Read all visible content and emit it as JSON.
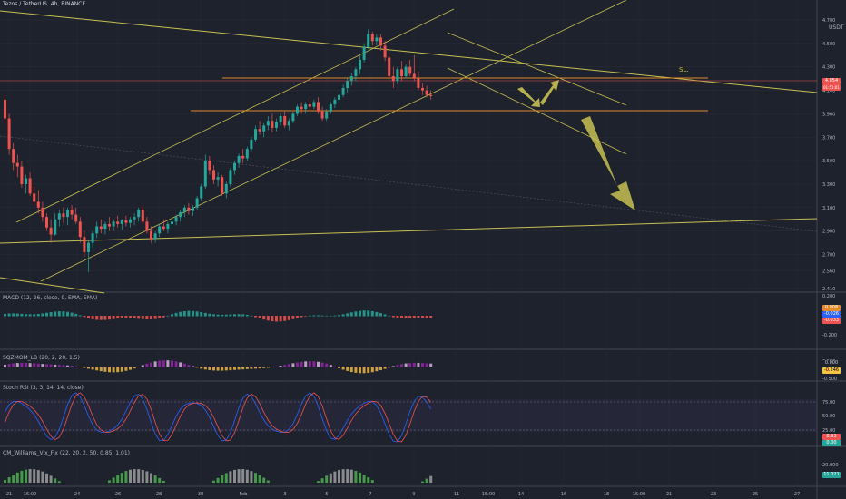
{
  "header": {
    "title": "Tezos / TetherUS, 4h, BINANCE",
    "currency": "USDT"
  },
  "colors": {
    "bg": "#1e222d",
    "up": "#26a69a",
    "down": "#ef5350",
    "trend": "#c8c052",
    "level": "#e08a2c",
    "grid": "#2a2e39",
    "text": "#b2b5be"
  },
  "chart_data": [
    {
      "type": "candlestick",
      "name": "price",
      "yticks": [
        "4.700",
        "4.500",
        "4.300",
        "4.100",
        "3.900",
        "3.700",
        "3.500",
        "3.300",
        "3.100",
        "2.900",
        "2.700",
        "2.560",
        "2.410"
      ],
      "ylim": [
        2.41,
        4.8
      ],
      "last_price": "4.054",
      "countdown": "01:51:01",
      "x_ticks": [
        "21",
        "15:00",
        "24",
        "26",
        "28",
        "30",
        "Feb",
        "3",
        "5",
        "7",
        "9",
        "11",
        "15:00",
        "14",
        "16",
        "18",
        "15:00",
        "21",
        "23",
        "25",
        "27"
      ],
      "annotations": [
        "SL."
      ],
      "candles": [
        [
          4.02,
          4.06,
          3.82,
          3.86
        ],
        [
          3.86,
          3.9,
          3.55,
          3.6
        ],
        [
          3.6,
          3.65,
          3.42,
          3.48
        ],
        [
          3.48,
          3.55,
          3.36,
          3.45
        ],
        [
          3.45,
          3.5,
          3.27,
          3.3
        ],
        [
          3.3,
          3.38,
          3.22,
          3.35
        ],
        [
          3.35,
          3.4,
          3.2,
          3.22
        ],
        [
          3.22,
          3.28,
          3.12,
          3.15
        ],
        [
          3.15,
          3.25,
          3.05,
          3.1
        ],
        [
          3.1,
          3.15,
          2.98,
          3.02
        ],
        [
          3.02,
          3.05,
          2.9,
          2.93
        ],
        [
          2.93,
          3.0,
          2.8,
          2.87
        ],
        [
          2.87,
          3.05,
          2.86,
          3.0
        ],
        [
          3.0,
          3.08,
          2.94,
          3.05
        ],
        [
          3.05,
          3.1,
          2.97,
          3.02
        ],
        [
          3.02,
          3.1,
          2.95,
          3.08
        ],
        [
          3.08,
          3.12,
          3.0,
          3.04
        ],
        [
          3.04,
          3.1,
          2.96,
          2.98
        ],
        [
          2.98,
          3.02,
          2.8,
          2.85
        ],
        [
          2.85,
          2.9,
          2.68,
          2.72
        ],
        [
          2.72,
          2.82,
          2.55,
          2.8
        ],
        [
          2.8,
          2.9,
          2.76,
          2.88
        ],
        [
          2.88,
          2.98,
          2.84,
          2.94
        ],
        [
          2.94,
          3.0,
          2.88,
          2.92
        ],
        [
          2.92,
          2.98,
          2.87,
          2.96
        ],
        [
          2.96,
          3.02,
          2.9,
          2.94
        ],
        [
          2.94,
          3.0,
          2.9,
          2.98
        ],
        [
          2.98,
          3.03,
          2.93,
          2.96
        ],
        [
          2.96,
          3.0,
          2.91,
          2.99
        ],
        [
          2.99,
          3.03,
          2.94,
          2.97
        ],
        [
          2.97,
          3.02,
          2.93,
          3.0
        ],
        [
          3.0,
          3.05,
          2.95,
          3.02
        ],
        [
          3.02,
          3.1,
          2.98,
          3.08
        ],
        [
          3.08,
          3.12,
          2.96,
          2.98
        ],
        [
          2.98,
          3.02,
          2.88,
          2.9
        ],
        [
          2.9,
          2.94,
          2.8,
          2.83
        ],
        [
          2.83,
          2.9,
          2.8,
          2.88
        ],
        [
          2.88,
          2.96,
          2.85,
          2.94
        ],
        [
          2.94,
          3.0,
          2.9,
          2.92
        ],
        [
          2.92,
          2.98,
          2.88,
          2.96
        ],
        [
          2.96,
          3.0,
          2.92,
          2.98
        ],
        [
          2.98,
          3.04,
          2.95,
          3.02
        ],
        [
          3.02,
          3.08,
          2.98,
          3.06
        ],
        [
          3.06,
          3.12,
          3.02,
          3.1
        ],
        [
          3.1,
          3.14,
          3.04,
          3.07
        ],
        [
          3.07,
          3.12,
          3.03,
          3.1
        ],
        [
          3.1,
          3.2,
          3.08,
          3.18
        ],
        [
          3.18,
          3.3,
          3.16,
          3.28
        ],
        [
          3.28,
          3.55,
          3.26,
          3.5
        ],
        [
          3.5,
          3.54,
          3.38,
          3.42
        ],
        [
          3.42,
          3.46,
          3.3,
          3.34
        ],
        [
          3.34,
          3.4,
          3.28,
          3.36
        ],
        [
          3.36,
          3.38,
          3.2,
          3.22
        ],
        [
          3.22,
          3.32,
          3.18,
          3.3
        ],
        [
          3.3,
          3.44,
          3.28,
          3.42
        ],
        [
          3.42,
          3.5,
          3.38,
          3.48
        ],
        [
          3.48,
          3.56,
          3.44,
          3.54
        ],
        [
          3.54,
          3.6,
          3.48,
          3.52
        ],
        [
          3.52,
          3.62,
          3.5,
          3.6
        ],
        [
          3.6,
          3.7,
          3.58,
          3.68
        ],
        [
          3.68,
          3.8,
          3.66,
          3.77
        ],
        [
          3.77,
          3.84,
          3.72,
          3.75
        ],
        [
          3.75,
          3.82,
          3.7,
          3.8
        ],
        [
          3.8,
          3.88,
          3.76,
          3.84
        ],
        [
          3.84,
          3.9,
          3.74,
          3.78
        ],
        [
          3.78,
          3.86,
          3.75,
          3.83
        ],
        [
          3.83,
          3.9,
          3.8,
          3.88
        ],
        [
          3.88,
          3.92,
          3.78,
          3.8
        ],
        [
          3.8,
          3.86,
          3.76,
          3.84
        ],
        [
          3.84,
          3.92,
          3.82,
          3.9
        ],
        [
          3.9,
          3.98,
          3.88,
          3.96
        ],
        [
          3.96,
          4.0,
          3.9,
          3.94
        ],
        [
          3.94,
          4.0,
          3.9,
          3.98
        ],
        [
          3.98,
          4.02,
          3.93,
          3.96
        ],
        [
          3.96,
          4.02,
          3.94,
          4.0
        ],
        [
          4.0,
          4.04,
          3.9,
          3.92
        ],
        [
          3.92,
          3.96,
          3.84,
          3.86
        ],
        [
          3.86,
          3.94,
          3.84,
          3.92
        ],
        [
          3.92,
          4.0,
          3.9,
          3.98
        ],
        [
          3.98,
          4.04,
          3.95,
          4.02
        ],
        [
          4.02,
          4.08,
          4.0,
          4.06
        ],
        [
          4.06,
          4.15,
          4.04,
          4.12
        ],
        [
          4.12,
          4.2,
          4.08,
          4.18
        ],
        [
          4.18,
          4.25,
          4.14,
          4.22
        ],
        [
          4.22,
          4.3,
          4.18,
          4.28
        ],
        [
          4.28,
          4.4,
          4.24,
          4.36
        ],
        [
          4.36,
          4.5,
          4.34,
          4.47
        ],
        [
          4.47,
          4.62,
          4.45,
          4.58
        ],
        [
          4.58,
          4.6,
          4.48,
          4.52
        ],
        [
          4.52,
          4.58,
          4.48,
          4.55
        ],
        [
          4.55,
          4.58,
          4.44,
          4.48
        ],
        [
          4.48,
          4.52,
          4.35,
          4.38
        ],
        [
          4.38,
          4.42,
          4.2,
          4.22
        ],
        [
          4.22,
          4.3,
          4.12,
          4.18
        ],
        [
          4.18,
          4.3,
          4.15,
          4.28
        ],
        [
          4.28,
          4.35,
          4.18,
          4.22
        ],
        [
          4.22,
          4.32,
          4.2,
          4.3
        ],
        [
          4.3,
          4.36,
          4.22,
          4.24
        ],
        [
          4.24,
          4.4,
          4.18,
          4.2
        ],
        [
          4.2,
          4.26,
          4.1,
          4.12
        ],
        [
          4.12,
          4.16,
          4.06,
          4.1
        ],
        [
          4.1,
          4.14,
          4.04,
          4.06
        ],
        [
          4.06,
          4.1,
          4.02,
          4.05
        ]
      ]
    },
    {
      "type": "line",
      "name": "MACD (12, 26, close, 9, EMA, EMA)",
      "yticks": [
        "0.200",
        "0.000",
        "-0.200"
      ],
      "values": [
        "0.008",
        "-0.026",
        "-0.033"
      ]
    },
    {
      "type": "bar",
      "name": "SQZMOM_LB (20, 2, 20, 1.5)",
      "yticks": [
        "0.000",
        "-0.500"
      ],
      "values": [
        "0.000",
        "-0.246"
      ]
    },
    {
      "type": "line",
      "name": "Stoch RSI (3, 3, 14, 14, close)",
      "yticks": [
        "75.00",
        "50.00",
        "25.00"
      ],
      "values": [
        "8.93",
        "0.00"
      ]
    },
    {
      "type": "bar",
      "name": "CM_Williams_Vix_Fix (22, 20, 2, 50, 0.85, 1.01)",
      "yticks": [
        "20.000"
      ],
      "values": [
        "11.021"
      ]
    }
  ]
}
